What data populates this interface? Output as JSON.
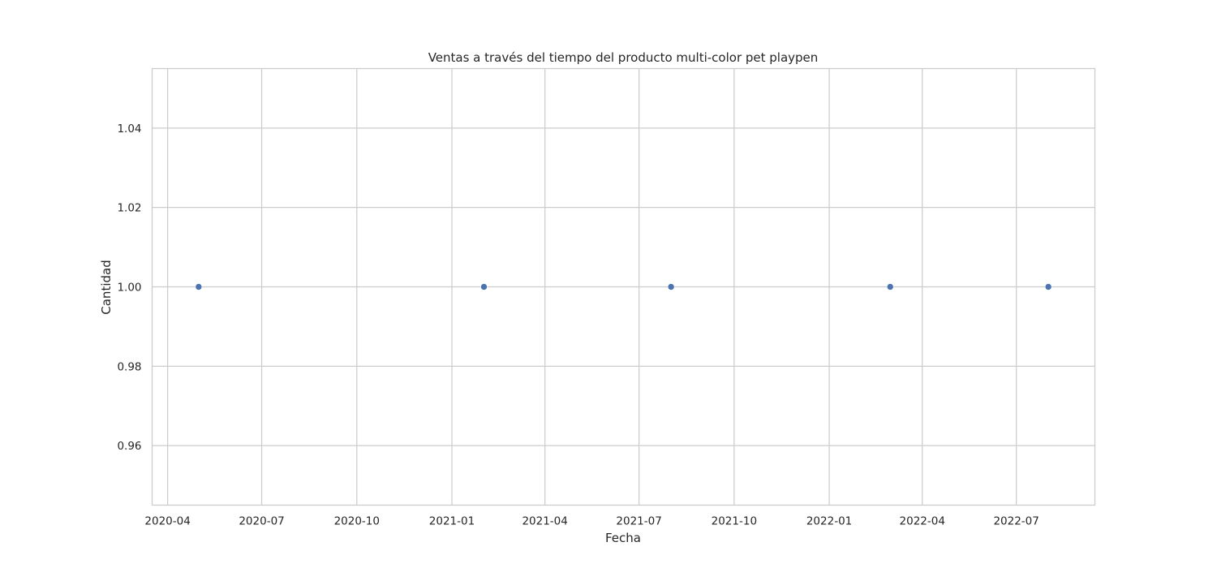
{
  "chart_data": {
    "type": "scatter",
    "title": "Ventas a través del tiempo del producto multi-color pet playpen",
    "xlabel": "Fecha",
    "ylabel": "Cantidad",
    "x_type": "date",
    "xlim": [
      "2020-03-17",
      "2022-09-15"
    ],
    "ylim": [
      0.945,
      1.055
    ],
    "x_ticks": [
      "2020-04-01",
      "2020-07-01",
      "2020-10-01",
      "2021-01-01",
      "2021-04-01",
      "2021-07-01",
      "2021-10-01",
      "2022-01-01",
      "2022-04-01",
      "2022-07-01"
    ],
    "x_tick_labels": [
      "2020-04",
      "2020-07",
      "2020-10",
      "2021-01",
      "2021-04",
      "2021-07",
      "2021-10",
      "2022-01",
      "2022-04",
      "2022-07"
    ],
    "y_ticks": [
      0.96,
      0.98,
      1.0,
      1.02,
      1.04
    ],
    "y_tick_labels": [
      "0.96",
      "0.98",
      "1.00",
      "1.02",
      "1.04"
    ],
    "grid": true,
    "series": [
      {
        "x": [
          "2020-05-01",
          "2021-02-01",
          "2021-08-01",
          "2022-03-01",
          "2022-08-01"
        ],
        "y": [
          1,
          1,
          1,
          1,
          1
        ],
        "color": "#4c72b0"
      }
    ]
  }
}
